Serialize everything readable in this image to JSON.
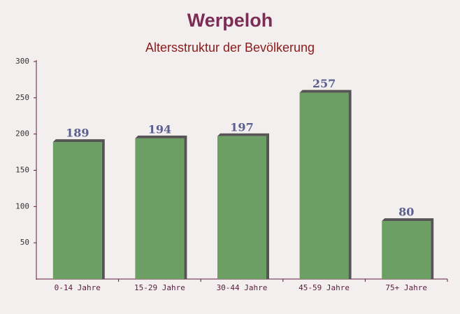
{
  "chart_data": {
    "type": "bar",
    "title": "Werpeloh",
    "subtitle": "Altersstruktur der Bevölkerung",
    "categories": [
      "0-14 Jahre",
      "15-29 Jahre",
      "30-44 Jahre",
      "45-59 Jahre",
      "75+ Jahre"
    ],
    "values": [
      189,
      194,
      197,
      257,
      80
    ],
    "color": "#6b9f63",
    "ylim": [
      0,
      300
    ],
    "yticks": [
      50,
      100,
      150,
      200,
      250,
      300
    ],
    "grid": false
  }
}
